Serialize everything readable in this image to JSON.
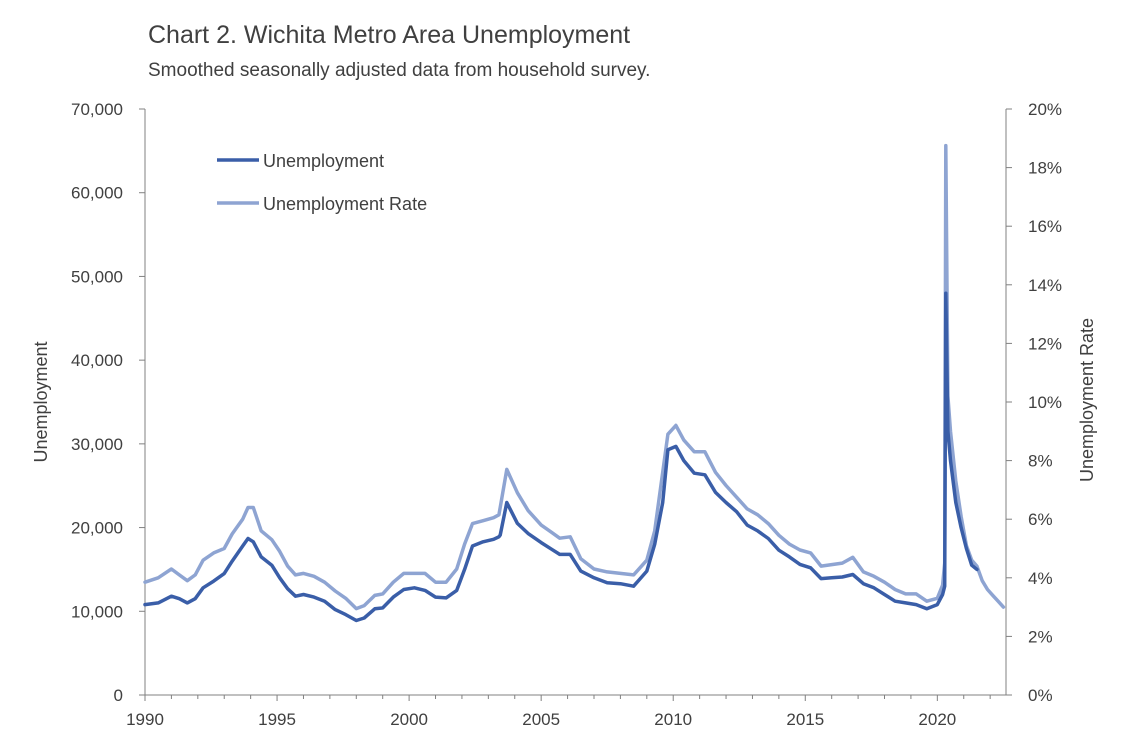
{
  "chart_data": {
    "type": "line",
    "title": "Chart 2. Wichita Metro Area Unemployment",
    "subtitle": "Smoothed seasonally adjusted data from household survey.",
    "ylabel": "Unemployment",
    "y2label": "Unemployment Rate",
    "xlim": [
      1990,
      2022.6
    ],
    "ylim": [
      0,
      70000
    ],
    "y2lim": [
      0,
      20
    ],
    "xticks": [
      "1990",
      "1995",
      "2000",
      "2005",
      "2010",
      "2015",
      "2020"
    ],
    "yticks": [
      "0",
      "10,000",
      "20,000",
      "30,000",
      "40,000",
      "50,000",
      "60,000",
      "70,000"
    ],
    "y2ticks": [
      "0%",
      "2%",
      "4%",
      "6%",
      "8%",
      "10%",
      "12%",
      "14%",
      "16%",
      "18%",
      "20%"
    ],
    "legend_position": "top-left",
    "series": [
      {
        "name": "Unemployment",
        "axis": "left",
        "color": "#3a5ea8",
        "x": [
          1990.0,
          1990.5,
          1991.0,
          1991.3,
          1991.6,
          1991.9,
          1992.2,
          1992.6,
          1993.0,
          1993.3,
          1993.7,
          1993.9,
          1994.1,
          1994.4,
          1994.8,
          1995.1,
          1995.4,
          1995.7,
          1996.0,
          1996.4,
          1996.8,
          1997.2,
          1997.6,
          1998.0,
          1998.3,
          1998.7,
          1999.0,
          1999.4,
          1999.8,
          2000.2,
          2000.6,
          2001.0,
          2001.4,
          2001.8,
          2002.1,
          2002.4,
          2002.8,
          2003.2,
          2003.4,
          2003.45,
          2003.7,
          2004.1,
          2004.5,
          2005.0,
          2005.4,
          2005.7,
          2006.1,
          2006.5,
          2007.0,
          2007.5,
          2008.0,
          2008.5,
          2009.0,
          2009.3,
          2009.6,
          2009.8,
          2010.1,
          2010.4,
          2010.8,
          2011.2,
          2011.6,
          2012.0,
          2012.4,
          2012.8,
          2013.2,
          2013.6,
          2014.0,
          2014.4,
          2014.8,
          2015.2,
          2015.6,
          2016.0,
          2016.4,
          2016.8,
          2017.2,
          2017.6,
          2018.0,
          2018.4,
          2018.8,
          2019.2,
          2019.6,
          2020.0,
          2020.2,
          2020.28,
          2020.32,
          2020.4,
          2020.5,
          2020.7,
          2020.9,
          2021.1,
          2021.3,
          2021.5
        ],
        "y": [
          10800,
          11000,
          11800,
          11500,
          11000,
          11500,
          12800,
          13600,
          14500,
          16000,
          17800,
          18700,
          18300,
          16500,
          15500,
          14000,
          12700,
          11800,
          12000,
          11700,
          11200,
          10200,
          9600,
          8900,
          9200,
          10300,
          10400,
          11700,
          12600,
          12800,
          12500,
          11700,
          11600,
          12500,
          15000,
          17800,
          18300,
          18600,
          18900,
          19100,
          23000,
          20500,
          19300,
          18200,
          17400,
          16800,
          16800,
          14800,
          14000,
          13400,
          13300,
          13000,
          14800,
          18000,
          23000,
          29300,
          29700,
          28000,
          26500,
          26300,
          24200,
          23000,
          21900,
          20300,
          19600,
          18700,
          17300,
          16500,
          15600,
          15200,
          13900,
          14000,
          14100,
          14400,
          13300,
          12800,
          12000,
          11200,
          11000,
          10800,
          10300,
          10800,
          12000,
          13000,
          48000,
          31500,
          28000,
          23000,
          20000,
          17500,
          15500,
          15000
        ]
      },
      {
        "name": "Unemployment Rate",
        "axis": "right",
        "color": "#8ea4d2",
        "x": [
          1990.0,
          1990.5,
          1991.0,
          1991.3,
          1991.6,
          1991.9,
          1992.2,
          1992.6,
          1993.0,
          1993.3,
          1993.7,
          1993.9,
          1994.1,
          1994.4,
          1994.8,
          1995.1,
          1995.4,
          1995.7,
          1996.0,
          1996.4,
          1996.8,
          1997.2,
          1997.6,
          1998.0,
          1998.3,
          1998.7,
          1999.0,
          1999.4,
          1999.8,
          2000.2,
          2000.6,
          2001.0,
          2001.4,
          2001.8,
          2002.1,
          2002.4,
          2002.8,
          2003.2,
          2003.4,
          2003.45,
          2003.7,
          2004.1,
          2004.5,
          2005.0,
          2005.4,
          2005.7,
          2006.1,
          2006.5,
          2007.0,
          2007.5,
          2008.0,
          2008.5,
          2009.0,
          2009.3,
          2009.6,
          2009.8,
          2010.1,
          2010.4,
          2010.8,
          2011.2,
          2011.6,
          2012.0,
          2012.4,
          2012.8,
          2013.2,
          2013.6,
          2014.0,
          2014.4,
          2014.8,
          2015.2,
          2015.6,
          2016.0,
          2016.4,
          2016.8,
          2017.2,
          2017.6,
          2018.0,
          2018.4,
          2018.8,
          2019.2,
          2019.6,
          2020.0,
          2020.2,
          2020.28,
          2020.32,
          2020.4,
          2020.5,
          2020.7,
          2020.9,
          2021.1,
          2021.3,
          2021.5,
          2021.7,
          2021.9,
          2022.1,
          2022.3,
          2022.5
        ],
        "y": [
          3.85,
          4.0,
          4.3,
          4.1,
          3.9,
          4.1,
          4.6,
          4.85,
          5.0,
          5.5,
          6.0,
          6.4,
          6.4,
          5.6,
          5.3,
          4.9,
          4.4,
          4.1,
          4.15,
          4.05,
          3.85,
          3.55,
          3.3,
          2.95,
          3.05,
          3.4,
          3.45,
          3.85,
          4.15,
          4.15,
          4.15,
          3.85,
          3.85,
          4.3,
          5.15,
          5.85,
          5.95,
          6.05,
          6.15,
          6.4,
          7.7,
          6.9,
          6.3,
          5.8,
          5.55,
          5.35,
          5.4,
          4.65,
          4.3,
          4.2,
          4.15,
          4.1,
          4.6,
          5.6,
          7.6,
          8.9,
          9.2,
          8.7,
          8.3,
          8.3,
          7.6,
          7.15,
          6.75,
          6.35,
          6.15,
          5.85,
          5.45,
          5.15,
          4.95,
          4.85,
          4.4,
          4.45,
          4.5,
          4.7,
          4.2,
          4.05,
          3.85,
          3.6,
          3.45,
          3.45,
          3.2,
          3.3,
          3.75,
          4.5,
          18.75,
          10.2,
          9.0,
          7.3,
          6.1,
          5.1,
          4.6,
          4.4,
          3.9,
          3.6,
          3.4,
          3.2,
          3.0
        ]
      }
    ]
  }
}
